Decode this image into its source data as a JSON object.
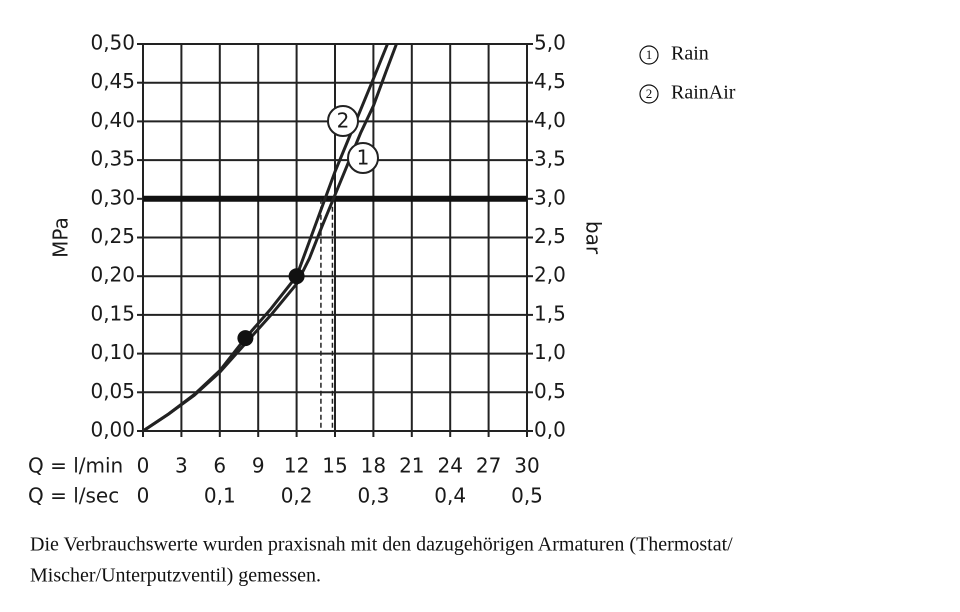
{
  "chart_data": {
    "type": "line",
    "xlabel": "Q = l/min",
    "x2label": "Q = l/sec",
    "ylabel": "MPa",
    "y2label": "bar",
    "xlim": [
      0,
      30
    ],
    "xticks": [
      0,
      3,
      6,
      9,
      12,
      15,
      18,
      21,
      24,
      27,
      30
    ],
    "x2lim": [
      0,
      0.5
    ],
    "x2ticks": [
      {
        "value": 0,
        "label": "0"
      },
      {
        "value": 0.1,
        "label": "0,1"
      },
      {
        "value": 0.2,
        "label": "0,2"
      },
      {
        "value": 0.3,
        "label": "0,3"
      },
      {
        "value": 0.4,
        "label": "0,4"
      },
      {
        "value": 0.5,
        "label": "0,5"
      }
    ],
    "ylim": [
      0,
      0.5
    ],
    "yticks": [
      {
        "value": 0,
        "label": "0,00"
      },
      {
        "value": 0.05,
        "label": "0,05"
      },
      {
        "value": 0.1,
        "label": "0,10"
      },
      {
        "value": 0.15,
        "label": "0,15"
      },
      {
        "value": 0.2,
        "label": "0,20"
      },
      {
        "value": 0.25,
        "label": "0,25"
      },
      {
        "value": 0.3,
        "label": "0,30"
      },
      {
        "value": 0.35,
        "label": "0,35"
      },
      {
        "value": 0.4,
        "label": "0,40"
      },
      {
        "value": 0.45,
        "label": "0,45"
      },
      {
        "value": 0.5,
        "label": "0,50"
      }
    ],
    "y2lim": [
      0,
      5
    ],
    "y2ticks": [
      {
        "value": 0,
        "label": "0,0"
      },
      {
        "value": 0.5,
        "label": "0,5"
      },
      {
        "value": 1,
        "label": "1,0"
      },
      {
        "value": 1.5,
        "label": "1,5"
      },
      {
        "value": 2,
        "label": "2,0"
      },
      {
        "value": 2.5,
        "label": "2,5"
      },
      {
        "value": 3,
        "label": "3,0"
      },
      {
        "value": 3.5,
        "label": "3,5"
      },
      {
        "value": 4,
        "label": "4,0"
      },
      {
        "value": 4.5,
        "label": "4,5"
      },
      {
        "value": 5,
        "label": "5,0"
      }
    ],
    "grid": true,
    "reference_line": 0.3,
    "drop_lines": [
      13.9,
      14.8
    ],
    "series": [
      {
        "name": "Rain",
        "label": "1",
        "color": "#222222",
        "x": [
          0,
          2,
          4,
          6,
          8,
          10,
          12,
          13,
          14,
          15,
          16,
          17,
          18,
          19,
          19.8
        ],
        "values": [
          0,
          0.022,
          0.046,
          0.076,
          0.113,
          0.15,
          0.19,
          0.223,
          0.265,
          0.305,
          0.345,
          0.385,
          0.42,
          0.465,
          0.5
        ]
      },
      {
        "name": "RainAir",
        "label": "2",
        "color": "#222222",
        "x": [
          0,
          2,
          4,
          6,
          8,
          10,
          12,
          13,
          14,
          15,
          16,
          17,
          18,
          19.1
        ],
        "values": [
          0,
          0.022,
          0.047,
          0.078,
          0.12,
          0.158,
          0.2,
          0.245,
          0.29,
          0.335,
          0.375,
          0.415,
          0.455,
          0.5
        ]
      }
    ],
    "points": {
      "x": [
        8,
        12
      ],
      "values": [
        0.12,
        0.2
      ]
    },
    "caption": [
      "Die Verbrauchswerte wurden praxisnah mit den dazugehörigen Armaturen (Thermostat/",
      "Mischer/Unterputzventil) gemessen."
    ]
  }
}
